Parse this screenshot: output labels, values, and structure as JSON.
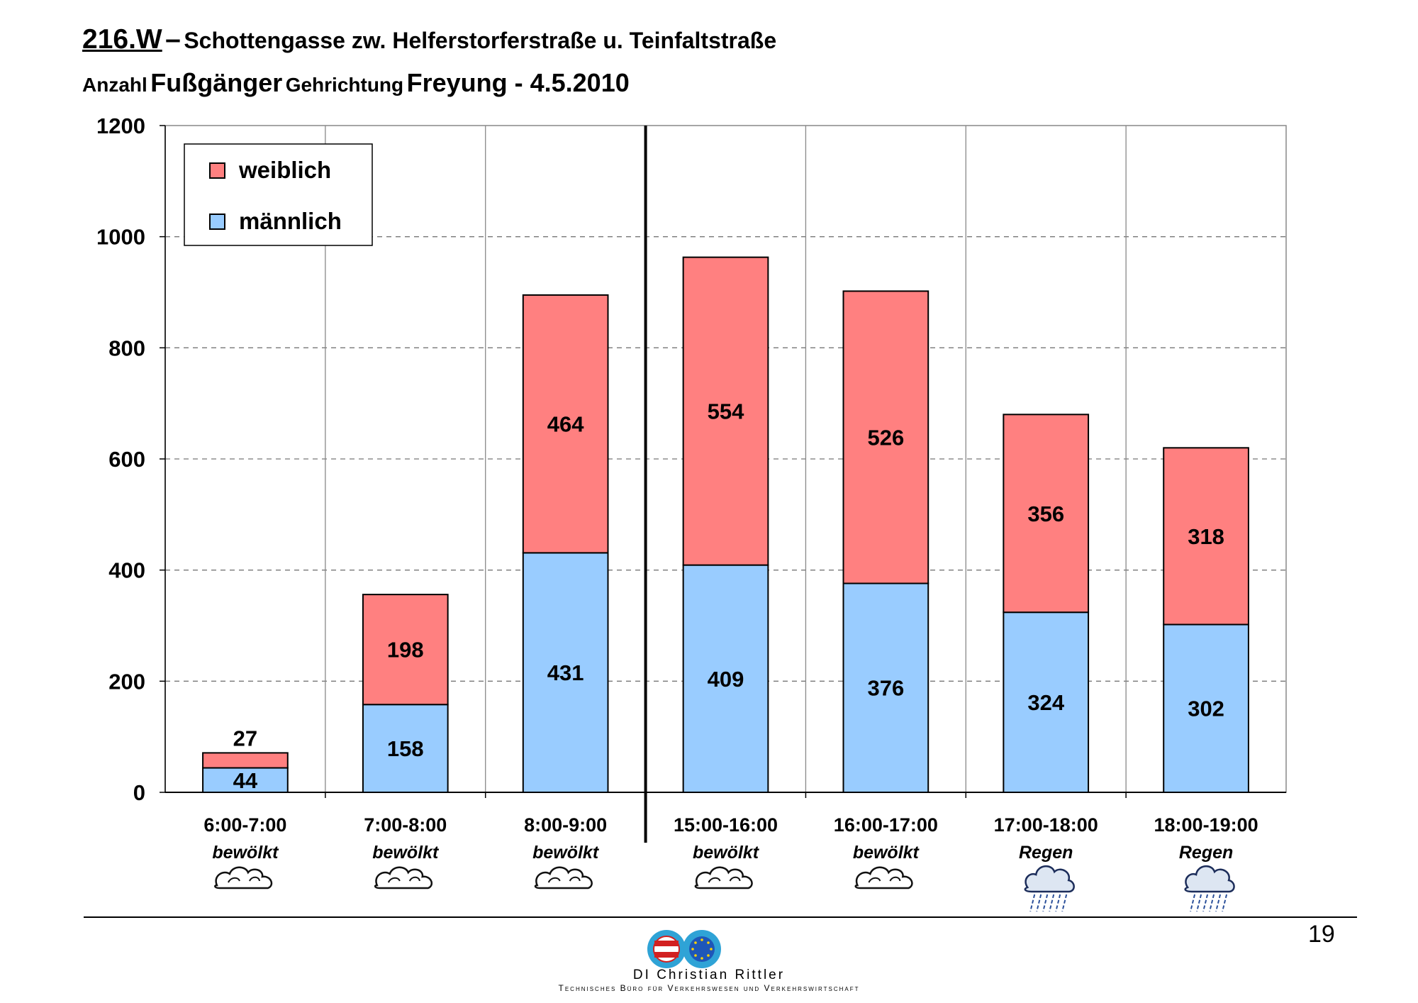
{
  "header": {
    "code": "216.W",
    "dash": "–",
    "street": "Schottengasse zw. Helferstorferstraße u. Teinfaltstraße",
    "count_label": "Anzahl",
    "subject": "Fußgänger",
    "direction_label": "Gehrichtung",
    "direction": "Freyung - 4.5.2010"
  },
  "chart_data": {
    "type": "bar",
    "stacked": true,
    "title": "Anzahl Fußgänger Gehrichtung Freyung - 4.5.2010",
    "xlabel": "",
    "ylabel": "",
    "ylim": [
      0,
      1200
    ],
    "yticks": [
      0,
      200,
      400,
      600,
      800,
      1000,
      1200
    ],
    "grid": true,
    "legend_position": "top-left",
    "categories": [
      "6:00-7:00",
      "7:00-8:00",
      "8:00-9:00",
      "15:00-16:00",
      "16:00-17:00",
      "17:00-18:00",
      "18:00-19:00"
    ],
    "weather": [
      "bewölkt",
      "bewölkt",
      "bewölkt",
      "bewölkt",
      "bewölkt",
      "Regen",
      "Regen"
    ],
    "weather_icons": [
      "cloud-icon",
      "cloud-icon",
      "cloud-icon",
      "cloud-icon",
      "cloud-icon",
      "rain-cloud-icon",
      "rain-cloud-icon"
    ],
    "series": [
      {
        "name": "männlich",
        "color": "#99ccff",
        "values": [
          44,
          158,
          431,
          409,
          376,
          324,
          302
        ]
      },
      {
        "name": "weiblich",
        "color": "#ff8080",
        "values": [
          27,
          198,
          464,
          554,
          526,
          356,
          318
        ]
      }
    ],
    "legend_order": [
      "weiblich",
      "männlich"
    ],
    "separator_after_category": 2
  },
  "footer": {
    "page_number": "19",
    "author": "DI Christian Rittler",
    "company": "Technisches Büro für Verkehrswesen und Verkehrswirtschaft",
    "logo_icon": "technisches-buero-ingenieurbuero-logo-icon"
  }
}
